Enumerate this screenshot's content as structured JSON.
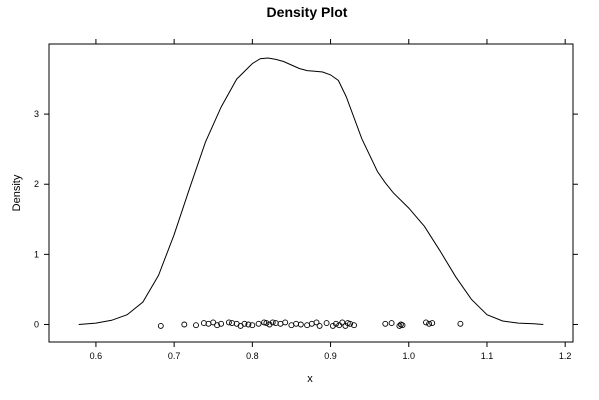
{
  "chart_data": {
    "type": "line",
    "title": "Density Plot",
    "xlabel": "x",
    "ylabel": "Density",
    "xlim": [
      0.54,
      1.21
    ],
    "ylim": [
      -0.25,
      4.0
    ],
    "x_ticks": [
      0.6,
      0.7,
      0.8,
      0.9,
      1.0,
      1.1,
      1.2
    ],
    "x_tick_labels": [
      "0.6",
      "0.7",
      "0.8",
      "0.9",
      "1.0",
      "1.1",
      "1.2"
    ],
    "y_ticks": [
      0,
      1,
      2,
      3
    ],
    "y_tick_labels": [
      "0",
      "1",
      "2",
      "3"
    ],
    "grid": false,
    "series": [
      {
        "kind": "density-line",
        "color": "#000000",
        "x": [
          0.578,
          0.6,
          0.62,
          0.64,
          0.66,
          0.68,
          0.7,
          0.72,
          0.74,
          0.76,
          0.78,
          0.8,
          0.81,
          0.82,
          0.83,
          0.84,
          0.85,
          0.86,
          0.87,
          0.88,
          0.89,
          0.9,
          0.91,
          0.92,
          0.94,
          0.96,
          0.97,
          0.98,
          1.0,
          1.02,
          1.04,
          1.06,
          1.08,
          1.1,
          1.12,
          1.14,
          1.16,
          1.172
        ],
        "y": [
          0.0,
          0.02,
          0.06,
          0.14,
          0.32,
          0.7,
          1.28,
          1.95,
          2.6,
          3.1,
          3.5,
          3.72,
          3.79,
          3.8,
          3.78,
          3.75,
          3.7,
          3.65,
          3.62,
          3.61,
          3.6,
          3.56,
          3.48,
          3.25,
          2.65,
          2.18,
          2.02,
          1.88,
          1.66,
          1.4,
          1.05,
          0.68,
          0.36,
          0.14,
          0.05,
          0.02,
          0.01,
          0.0
        ]
      },
      {
        "kind": "rug-points",
        "color": "#000000",
        "x": [
          0.683,
          0.713,
          0.728,
          0.738,
          0.744,
          0.75,
          0.755,
          0.76,
          0.77,
          0.774,
          0.78,
          0.785,
          0.79,
          0.795,
          0.8,
          0.808,
          0.815,
          0.818,
          0.822,
          0.826,
          0.83,
          0.836,
          0.842,
          0.85,
          0.856,
          0.862,
          0.87,
          0.876,
          0.882,
          0.886,
          0.895,
          0.903,
          0.907,
          0.911,
          0.915,
          0.919,
          0.922,
          0.925,
          0.93,
          0.97,
          0.978,
          0.988,
          0.99,
          0.992,
          1.022,
          1.026,
          1.03,
          1.066
        ],
        "y": [
          -0.02,
          0.0,
          -0.01,
          0.02,
          0.01,
          0.03,
          -0.01,
          0.01,
          0.03,
          0.02,
          0.01,
          -0.02,
          0.01,
          0.0,
          -0.01,
          0.01,
          0.03,
          0.02,
          0.0,
          0.03,
          0.02,
          0.01,
          0.03,
          -0.01,
          0.01,
          0.0,
          -0.01,
          0.01,
          0.03,
          -0.02,
          0.02,
          -0.02,
          0.01,
          -0.01,
          0.03,
          -0.02,
          0.02,
          0.01,
          -0.01,
          0.01,
          0.02,
          -0.02,
          0.0,
          -0.01,
          0.03,
          0.01,
          0.02,
          0.01
        ]
      }
    ]
  }
}
